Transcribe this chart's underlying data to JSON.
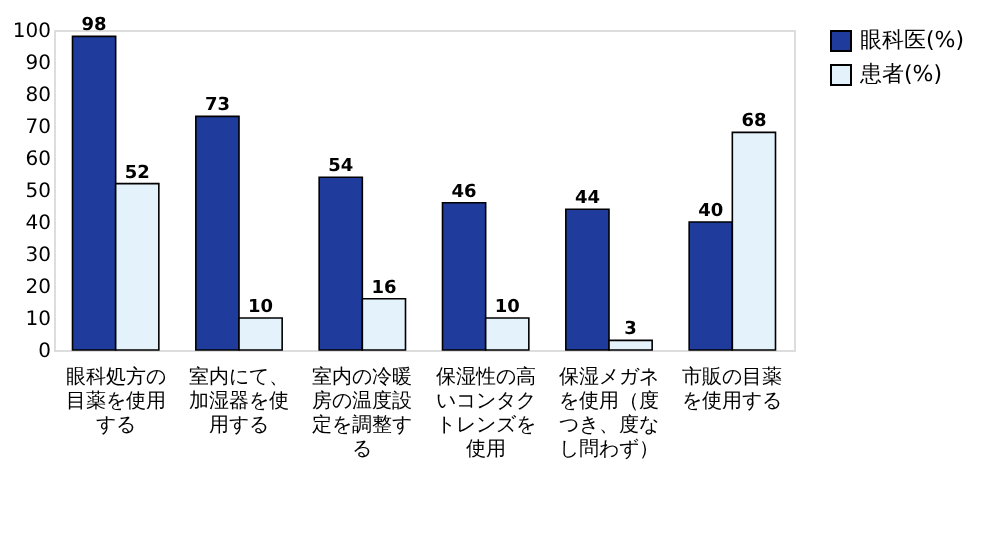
{
  "chart_data": {
    "type": "bar",
    "categories": [
      "眼科処方の目薬を使用する",
      "室内にて、加湿器を使用する",
      "室内の冷暖房の温度設定を調整する",
      "保湿性の高いコンタクトレンズを使用",
      "保湿メガネを使用（度つき、度なし問わず）",
      "市販の目薬を使用する"
    ],
    "series": [
      {
        "name": "眼科医(%)",
        "color": "#1f3c9c",
        "values": [
          98,
          73,
          54,
          46,
          44,
          40
        ]
      },
      {
        "name": "患者(%)",
        "color": "#e4f3fb",
        "values": [
          52,
          10,
          16,
          10,
          3,
          68
        ]
      }
    ],
    "ylim": [
      0,
      100
    ],
    "yticks": [
      0,
      10,
      20,
      30,
      40,
      50,
      60,
      70,
      80,
      90,
      100
    ],
    "data_labels": true,
    "legend": "right",
    "grid": false
  }
}
